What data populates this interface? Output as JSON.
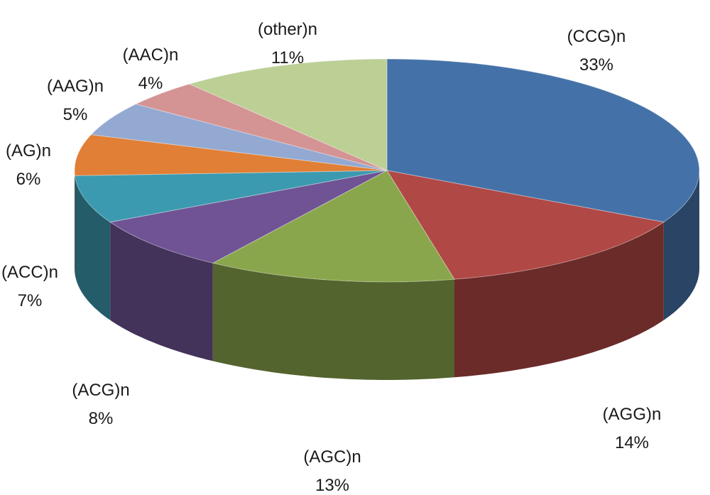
{
  "chart_data": {
    "type": "pie",
    "title": "",
    "slices": [
      {
        "label": "(CCG)n",
        "value": 33,
        "value_label": "33%",
        "color": "#4472a8"
      },
      {
        "label": "(AGG)n",
        "value": 14,
        "value_label": "14%",
        "color": "#b04845"
      },
      {
        "label": "(AGC)n",
        "value": 13,
        "value_label": "13%",
        "color": "#8aa64c"
      },
      {
        "label": "(ACG)n",
        "value": 8,
        "value_label": "8%",
        "color": "#6f5394"
      },
      {
        "label": "(ACC)n",
        "value": 7,
        "value_label": "7%",
        "color": "#3c9ab0"
      },
      {
        "label": "(AG)n",
        "value": 6,
        "value_label": "6%",
        "color": "#e07f35"
      },
      {
        "label": "(AAG)n",
        "value": 5,
        "value_label": "5%",
        "color": "#93a9d2"
      },
      {
        "label": "(AAC)n",
        "value": 4,
        "value_label": "4%",
        "color": "#d49494"
      },
      {
        "label": "(other)n",
        "value": 11,
        "value_label": "11%",
        "color": "#bccf95"
      }
    ],
    "style": "3d"
  }
}
